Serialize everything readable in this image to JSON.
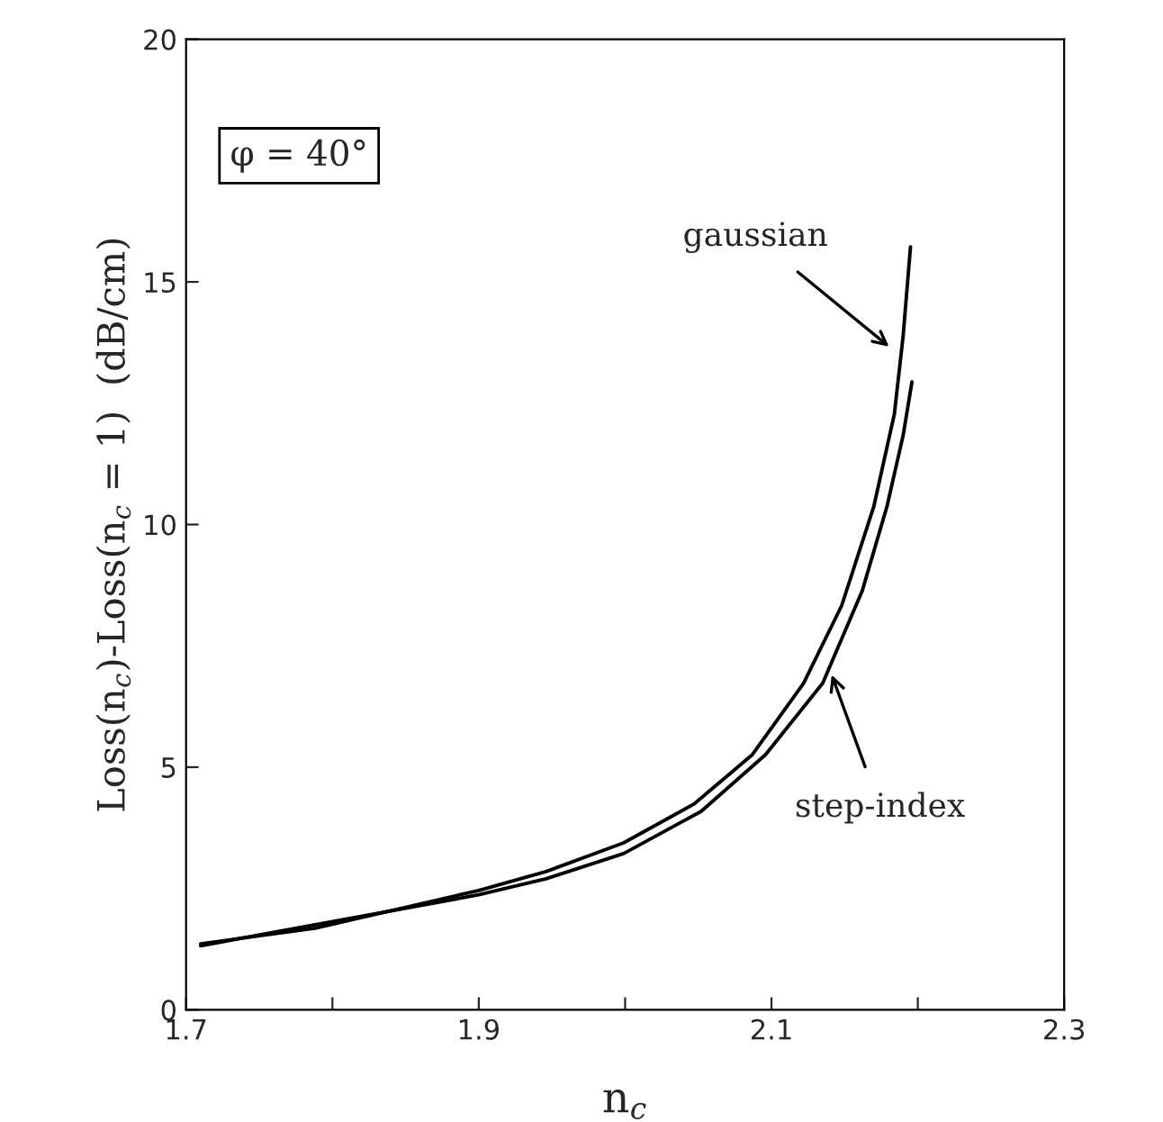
{
  "chart_data": {
    "type": "line",
    "xlabel": "n$_{c}$",
    "ylabel": "Loss(n$_{c}$)-Loss(n$_{c}$ = 1)  (dB/cm)",
    "xlim": [
      1.7,
      2.3
    ],
    "xticks": [
      1.7,
      {
        "value": 1.8,
        "label": null
      },
      1.9,
      {
        "value": 2.0,
        "label": null
      },
      2.1,
      {
        "value": 2.2,
        "label": null
      },
      2.3
    ],
    "ylim": [
      0,
      20
    ],
    "yticks": [
      0,
      5,
      10,
      15,
      20
    ],
    "grid": false,
    "line_style": "solid",
    "marker": "none",
    "series": [
      {
        "color": "#000000",
        "x": [
          1.71,
          1.788,
          1.9,
          1.946,
          1.999,
          2.047,
          2.087,
          2.122,
          2.148,
          2.17,
          2.184,
          2.19,
          2.195
        ],
        "values": [
          1.36,
          1.68,
          2.46,
          2.85,
          3.44,
          4.24,
          5.26,
          6.73,
          8.33,
          10.38,
          12.28,
          13.89,
          15.72
        ]
      },
      {
        "color": "#000000",
        "x": [
          1.71,
          1.9,
          1.946,
          1.999,
          2.052,
          2.096,
          2.135,
          2.162,
          2.179,
          2.19,
          2.196
        ],
        "values": [
          1.32,
          2.37,
          2.7,
          3.22,
          4.09,
          5.26,
          6.73,
          8.63,
          10.38,
          11.84,
          12.94
        ]
      }
    ],
    "annotations": [
      "φ = 40°",
      {
        "text": "gaussian",
        "x": 2.183,
        "y": 13.6
      },
      {
        "text": "step-index",
        "x": 2.14,
        "y": 7.0
      }
    ]
  }
}
